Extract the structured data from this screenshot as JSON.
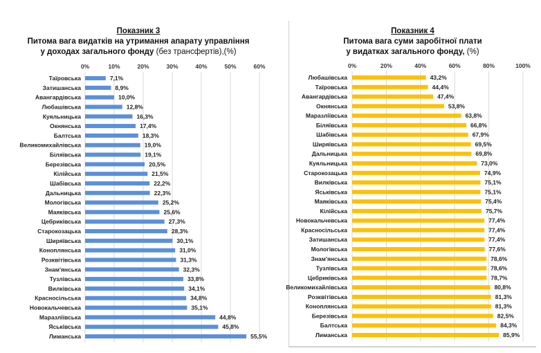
{
  "chart_data": [
    {
      "type": "bar",
      "orientation": "horizontal",
      "title_label": "Показник 3",
      "title_line1": "Питома вага видатків на утримання апарату управління",
      "title_line2_bold": "у доходах загального фонду",
      "title_line2_normal": " (без трансфертів),(%)",
      "xlabel": "",
      "ylabel": "",
      "xlim": [
        0,
        60
      ],
      "x_ticks": [
        "0%",
        "10%",
        "20%",
        "30%",
        "40%",
        "50%",
        "60%"
      ],
      "grid": true,
      "bar_color": "#5b8fdb",
      "categories": [
        "Таїровська",
        "Затишанська",
        "Авангардівська",
        "Любашівська",
        "Куяльницька",
        "Окнянська",
        "Балтська",
        "Великомихайлівська",
        "Біляївська",
        "Березівська",
        "Кілійська",
        "Шабівська",
        "Дальницька",
        "Мологівська",
        "Маяківська",
        "Цебриківська",
        "Старокозацька",
        "Ширяївська",
        "Коноплянська",
        "Розквітівська",
        "Знам'янська",
        "Тузлівська",
        "Вилківська",
        "Красносільська",
        "Новокальчевська",
        "Маразліївська",
        "Яськівська",
        "Лиманська"
      ],
      "values": [
        7.1,
        8.9,
        10.0,
        12.8,
        16.3,
        17.4,
        18.3,
        19.0,
        19.1,
        20.5,
        21.5,
        22.2,
        22.3,
        25.2,
        25.6,
        27.3,
        28.3,
        30.1,
        31.0,
        31.3,
        32.3,
        33.8,
        34.1,
        34.8,
        35.1,
        44.8,
        45.8,
        55.5
      ],
      "data_labels": [
        "7,1%",
        "8,9%",
        "10,0%",
        "12,8%",
        "16,3%",
        "17,4%",
        "18,3%",
        "19,0%",
        "19,1%",
        "20,5%",
        "21,5%",
        "22,2%",
        "22,3%",
        "25,2%",
        "25,6%",
        "27,3%",
        "28,3%",
        "30,1%",
        "31,0%",
        "31,3%",
        "32,3%",
        "33,8%",
        "34,1%",
        "34,8%",
        "35,1%",
        "44,8%",
        "45,8%",
        "55,5%"
      ]
    },
    {
      "type": "bar",
      "orientation": "horizontal",
      "title_label": "Показник 4",
      "title_line1": "Питома вага суми заробітної плати",
      "title_line2_bold": "у видатках загального фонду,",
      "title_line2_normal": " (%)",
      "xlabel": "",
      "ylabel": "",
      "xlim": [
        0,
        100
      ],
      "x_ticks": [
        "0%",
        "20%",
        "40%",
        "60%",
        "80%",
        "100%"
      ],
      "grid": true,
      "bar_color": "#ffc000",
      "categories": [
        "Любашівська",
        "Таїровська",
        "Авангардівська",
        "Окнянська",
        "Маразліївська",
        "Біляївська",
        "Шабівська",
        "Ширяївська",
        "Дальницька",
        "Куяльницька",
        "Старокозацька",
        "Вилківська",
        "Яськівська",
        "Маяківська",
        "Кілійська",
        "Новокальчевська",
        "Красносільська",
        "Затишанська",
        "Мологівська",
        "Знам'янська",
        "Тузлівська",
        "Цебриківська",
        "Великомихайлівська",
        "Розквітівська",
        "Коноплянська",
        "Березівська",
        "Балтська",
        "Лиманська"
      ],
      "values": [
        43.2,
        44.4,
        47.4,
        53.8,
        63.8,
        66.8,
        67.9,
        69.5,
        69.8,
        73.0,
        74.9,
        75.1,
        75.1,
        75.4,
        75.7,
        77.4,
        77.4,
        77.4,
        77.6,
        78.6,
        78.6,
        78.7,
        80.8,
        81.3,
        81.3,
        82.5,
        84.3,
        85.9
      ],
      "data_labels": [
        "43,2%",
        "44,4%",
        "47,4%",
        "53,8%",
        "63,8%",
        "66,8%",
        "67,9%",
        "69,5%",
        "69,8%",
        "73,0%",
        "74,9%",
        "75,1%",
        "75,1%",
        "75,4%",
        "75,7%",
        "77,4%",
        "77,4%",
        "77,4%",
        "77,6%",
        "78,6%",
        "78,6%",
        "78,7%",
        "80,8%",
        "81,3%",
        "81,3%",
        "82,5%",
        "84,3%",
        "85,9%"
      ]
    }
  ]
}
